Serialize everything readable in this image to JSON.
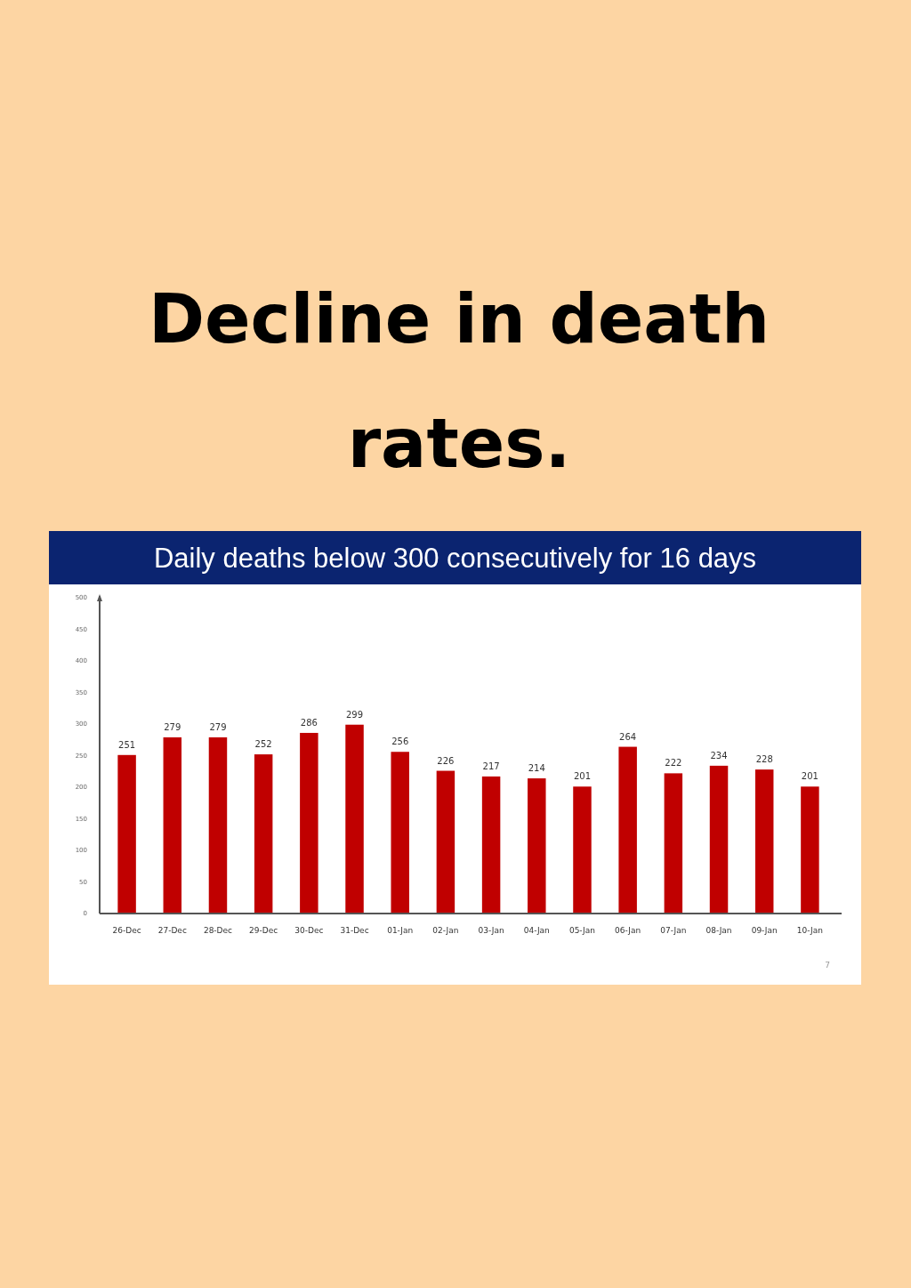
{
  "chart_data": {
    "type": "bar",
    "title": "Decline in death rates.",
    "subtitle": "Daily deaths below 300 consecutively for 16 days",
    "categories": [
      "26-Dec",
      "27-Dec",
      "28-Dec",
      "29-Dec",
      "30-Dec",
      "31-Dec",
      "01-Jan",
      "02-Jan",
      "03-Jan",
      "04-Jan",
      "05-Jan",
      "06-Jan",
      "07-Jan",
      "08-Jan",
      "09-Jan",
      "10-Jan"
    ],
    "values": [
      251,
      279,
      279,
      252,
      286,
      299,
      256,
      226,
      217,
      214,
      201,
      264,
      222,
      234,
      228,
      201
    ],
    "color": "#c00000",
    "data_labels": true,
    "grid": false,
    "ylim": [
      0,
      500
    ],
    "yticks": [
      0,
      50,
      100,
      150,
      200,
      250,
      300,
      350,
      400,
      450,
      500
    ],
    "annotations": [
      "7"
    ]
  }
}
